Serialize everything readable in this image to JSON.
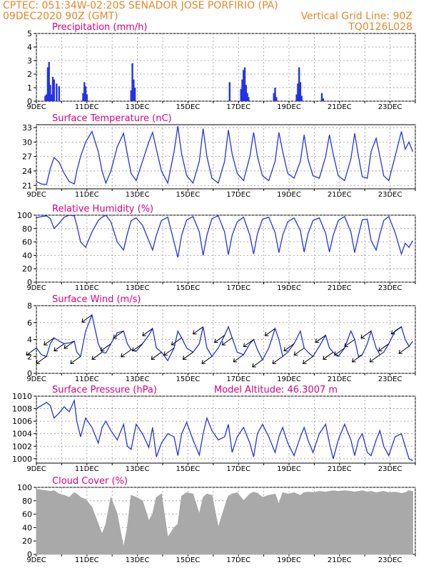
{
  "header": {
    "line1": "CPTEC:   051:34W-02:20S   SENADOR JOSE PORFIRIO (PA)",
    "line2_left": "09DEC2020 90Z (GMT)",
    "line2_right": "Vertical Grid Line: 90Z",
    "line3_right": "TQ0126L028"
  },
  "colors": {
    "header": "#e8862a",
    "title": "#e0007a",
    "series": "#2433e6",
    "cloud": "#a9a9a9",
    "wind_arrow": "#000000",
    "grid": "#9a9a9a"
  },
  "x_ticks": [
    "9DEC",
    "11DEC",
    "13DEC",
    "15DEC",
    "17DEC",
    "19DEC",
    "21DEC",
    "23DEC"
  ],
  "chart_data": [
    {
      "id": "precipitation",
      "type": "bar",
      "title": "Precipitation (mm/h)",
      "ylim": [
        0,
        5
      ],
      "yticks": [
        0,
        1,
        2,
        3,
        4,
        5
      ],
      "grid": true,
      "x": [
        0.35,
        0.4,
        0.45,
        0.5,
        0.55,
        0.6,
        0.65,
        0.7,
        0.8,
        0.9,
        1.85,
        1.9,
        1.95,
        2.0,
        3.75,
        3.8,
        3.85,
        3.9,
        7.65,
        8.1,
        8.15,
        8.2,
        8.25,
        8.3,
        8.35,
        8.4,
        9.4,
        9.45,
        9.5,
        10.3,
        10.35,
        10.4,
        10.45,
        10.5,
        11.3,
        11.35
      ],
      "values": [
        0.4,
        0.5,
        2.5,
        2.9,
        1.2,
        0.5,
        1.8,
        1.6,
        1.3,
        1.1,
        0.6,
        1.4,
        1.1,
        0.5,
        0.8,
        2.8,
        1.6,
        1.0,
        1.4,
        0.9,
        1.6,
        2.3,
        2.5,
        1.2,
        0.6,
        0.3,
        0.6,
        1.0,
        0.3,
        0.5,
        1.3,
        2.5,
        1.4,
        0.4,
        0.6,
        0.2
      ]
    },
    {
      "id": "temperature",
      "type": "line",
      "title": "Surface Temperature (nC)",
      "ylim": [
        20.3,
        33.6
      ],
      "yticks": [
        21,
        24,
        27,
        30,
        33
      ],
      "grid": true,
      "x": [
        0,
        0.2,
        0.4,
        0.55,
        0.7,
        0.9,
        1.1,
        1.3,
        1.5,
        1.6,
        1.75,
        1.95,
        2.2,
        2.45,
        2.6,
        2.75,
        2.95,
        3.2,
        3.45,
        3.6,
        3.75,
        3.95,
        4.2,
        4.45,
        4.6,
        4.75,
        4.95,
        5.2,
        5.45,
        5.6,
        5.75,
        5.95,
        6.2,
        6.45,
        6.6,
        6.75,
        6.95,
        7.2,
        7.45,
        7.6,
        7.75,
        7.95,
        8.2,
        8.45,
        8.6,
        8.75,
        8.95,
        9.2,
        9.45,
        9.6,
        9.75,
        9.95,
        10.2,
        10.45,
        10.6,
        10.75,
        10.95,
        11.2,
        11.45,
        11.6,
        11.75,
        11.95,
        12.2,
        12.45,
        12.6,
        12.75,
        12.9,
        13.1,
        13.25,
        13.45,
        13.6,
        13.75,
        13.95,
        14.2,
        14.45,
        14.6,
        14.75,
        14.9
      ],
      "values": [
        21.8,
        21.3,
        21.2,
        24.5,
        26.8,
        25.8,
        23.5,
        21.8,
        21.3,
        24.0,
        27.0,
        30.0,
        32.2,
        28.0,
        24.0,
        21.5,
        24.0,
        29.0,
        31.8,
        27.5,
        23.5,
        22.0,
        26.0,
        30.0,
        32.0,
        28.5,
        24.0,
        21.5,
        28.0,
        33.3,
        27.5,
        23.0,
        21.5,
        26.0,
        32.8,
        27.0,
        22.5,
        21.5,
        26.0,
        32.5,
        27.5,
        23.5,
        22.0,
        27.0,
        32.0,
        27.0,
        23.0,
        22.0,
        26.0,
        32.0,
        28.0,
        23.5,
        22.5,
        26.0,
        31.5,
        26.5,
        23.0,
        22.5,
        27.0,
        31.5,
        27.5,
        23.0,
        22.0,
        26.5,
        31.8,
        27.0,
        22.8,
        22.5,
        28.0,
        30.8,
        27.0,
        23.0,
        22.0,
        27.0,
        32.2,
        28.5,
        30.0,
        28.0
      ]
    },
    {
      "id": "humidity",
      "type": "line",
      "title": "Relative Humidity (%)",
      "ylim": [
        0,
        100
      ],
      "yticks": [
        0,
        20,
        40,
        60,
        80,
        100
      ],
      "grid": true,
      "x": [
        0,
        0.2,
        0.4,
        0.55,
        0.7,
        0.9,
        1.1,
        1.3,
        1.5,
        1.6,
        1.75,
        1.95,
        2.2,
        2.45,
        2.6,
        2.75,
        2.95,
        3.2,
        3.45,
        3.6,
        3.75,
        3.95,
        4.2,
        4.45,
        4.6,
        4.75,
        4.95,
        5.2,
        5.45,
        5.6,
        5.75,
        5.95,
        6.2,
        6.45,
        6.6,
        6.75,
        6.95,
        7.2,
        7.45,
        7.6,
        7.75,
        7.95,
        8.2,
        8.45,
        8.6,
        8.75,
        8.95,
        9.2,
        9.45,
        9.6,
        9.75,
        9.95,
        10.2,
        10.45,
        10.6,
        10.75,
        10.95,
        11.2,
        11.45,
        11.6,
        11.75,
        11.95,
        12.2,
        12.45,
        12.6,
        12.75,
        12.9,
        13.1,
        13.25,
        13.45,
        13.6,
        13.75,
        13.95,
        14.2,
        14.45,
        14.6,
        14.75,
        14.9
      ],
      "values": [
        96,
        98,
        99,
        95,
        80,
        88,
        97,
        100,
        99,
        85,
        60,
        52,
        75,
        92,
        97,
        100,
        90,
        60,
        48,
        72,
        92,
        96,
        85,
        62,
        48,
        70,
        92,
        97,
        60,
        37,
        70,
        93,
        98,
        75,
        40,
        70,
        95,
        99,
        75,
        41,
        70,
        90,
        97,
        70,
        42,
        72,
        94,
        97,
        74,
        44,
        70,
        90,
        96,
        77,
        45,
        72,
        92,
        96,
        73,
        45,
        70,
        92,
        98,
        75,
        44,
        70,
        93,
        94,
        62,
        48,
        72,
        92,
        98,
        74,
        42,
        58,
        52,
        62
      ]
    },
    {
      "id": "wind",
      "type": "line",
      "title": "Surface Wind (m/s)",
      "ylim": [
        0,
        8
      ],
      "yticks": [
        0,
        2,
        4,
        6,
        8
      ],
      "grid": true,
      "arrows": true,
      "x": [
        0,
        0.2,
        0.4,
        0.55,
        0.7,
        0.9,
        1.1,
        1.3,
        1.5,
        1.6,
        1.75,
        1.95,
        2.2,
        2.45,
        2.6,
        2.75,
        2.95,
        3.2,
        3.45,
        3.6,
        3.75,
        3.95,
        4.2,
        4.45,
        4.6,
        4.75,
        4.95,
        5.2,
        5.45,
        5.6,
        5.75,
        5.95,
        6.2,
        6.45,
        6.6,
        6.75,
        6.95,
        7.2,
        7.45,
        7.6,
        7.75,
        7.95,
        8.2,
        8.45,
        8.6,
        8.75,
        8.95,
        9.2,
        9.45,
        9.6,
        9.75,
        9.95,
        10.2,
        10.45,
        10.6,
        10.75,
        10.95,
        11.2,
        11.45,
        11.6,
        11.75,
        11.95,
        12.2,
        12.45,
        12.6,
        12.75,
        12.9,
        13.1,
        13.25,
        13.45,
        13.6,
        13.75,
        13.95,
        14.2,
        14.45,
        14.6,
        14.75,
        14.9
      ],
      "values": [
        3.0,
        2.2,
        2.0,
        3.5,
        4.2,
        3.8,
        3.5,
        3.6,
        3.8,
        2.5,
        2.0,
        5.0,
        6.9,
        3.5,
        2.5,
        2.4,
        3.5,
        4.8,
        5.0,
        3.5,
        2.8,
        2.6,
        3.5,
        4.5,
        5.3,
        3.0,
        2.5,
        1.5,
        3.0,
        5.0,
        4.2,
        3.0,
        2.5,
        3.5,
        5.5,
        3.0,
        2.0,
        3.0,
        4.5,
        5.5,
        4.2,
        2.5,
        2.2,
        3.5,
        4.0,
        2.8,
        1.6,
        3.0,
        5.3,
        4.0,
        2.0,
        2.5,
        3.5,
        5.0,
        3.0,
        2.5,
        2.0,
        3.2,
        4.5,
        3.0,
        2.5,
        2.0,
        3.0,
        5.0,
        4.0,
        2.0,
        2.2,
        3.5,
        5.0,
        3.0,
        2.2,
        2.5,
        3.5,
        5.0,
        5.5,
        4.0,
        3.2,
        3.8
      ]
    },
    {
      "id": "pressure",
      "type": "line",
      "title": "Surface Pressure (hPa)",
      "annotation": "Model Altitude: 46.3007 m",
      "ylim": [
        999.3,
        1010
      ],
      "yticks": [
        1000,
        1002,
        1004,
        1006,
        1008,
        1010
      ],
      "grid": true,
      "x": [
        0,
        0.2,
        0.4,
        0.55,
        0.7,
        0.9,
        1.1,
        1.3,
        1.5,
        1.6,
        1.75,
        1.95,
        2.2,
        2.45,
        2.6,
        2.75,
        2.95,
        3.2,
        3.45,
        3.6,
        3.75,
        3.95,
        4.2,
        4.45,
        4.6,
        4.75,
        4.95,
        5.2,
        5.45,
        5.6,
        5.75,
        5.95,
        6.2,
        6.45,
        6.6,
        6.75,
        6.95,
        7.2,
        7.45,
        7.6,
        7.75,
        7.95,
        8.2,
        8.45,
        8.6,
        8.75,
        8.95,
        9.2,
        9.45,
        9.6,
        9.75,
        9.95,
        10.2,
        10.45,
        10.6,
        10.75,
        10.95,
        11.2,
        11.45,
        11.6,
        11.75,
        11.95,
        12.2,
        12.45,
        12.6,
        12.75,
        12.9,
        13.1,
        13.25,
        13.45,
        13.6,
        13.75,
        13.95,
        14.2,
        14.45,
        14.6,
        14.75,
        14.9
      ],
      "values": [
        1008.0,
        1008.5,
        1009.0,
        1008.5,
        1006.5,
        1007.3,
        1008.3,
        1007.5,
        1009.3,
        1006.0,
        1003.5,
        1006.5,
        1005.0,
        1002.5,
        1005.0,
        1006.0,
        1004.5,
        1003.0,
        1005.5,
        1002.0,
        1001.5,
        1005.5,
        1004.0,
        1001.8,
        1005.0,
        1000.3,
        1002.5,
        1004.0,
        1003.5,
        1000.5,
        1004.0,
        1005.8,
        1003.0,
        1000.6,
        1004.0,
        1006.5,
        1004.5,
        1003.0,
        1003.5,
        1005.5,
        1001.0,
        1003.5,
        1005.0,
        1002.5,
        1000.3,
        1004.0,
        1005.5,
        1003.5,
        1001.0,
        1003.5,
        1005.0,
        1002.5,
        1000.5,
        1003.5,
        1005.0,
        1003.0,
        1001.0,
        1004.0,
        1005.5,
        1002.5,
        1000.0,
        1003.0,
        1005.5,
        1003.0,
        1000.5,
        1003.0,
        1004.0,
        1001.0,
        1000.5,
        1003.0,
        1004.5,
        1002.0,
        1000.5,
        1003.5,
        1004.0,
        1002.0,
        1000.0,
        999.7
      ]
    },
    {
      "id": "cloud",
      "type": "area",
      "title": "Cloud Cover (%)",
      "ylim": [
        0,
        100
      ],
      "yticks": [
        0,
        20,
        40,
        60,
        80,
        100
      ],
      "grid": true,
      "x": [
        0,
        0.2,
        0.4,
        0.55,
        0.7,
        0.9,
        1.1,
        1.3,
        1.5,
        1.6,
        1.75,
        1.95,
        2.2,
        2.45,
        2.6,
        2.75,
        2.95,
        3.2,
        3.45,
        3.6,
        3.75,
        3.95,
        4.2,
        4.45,
        4.6,
        4.75,
        4.95,
        5.2,
        5.45,
        5.6,
        5.75,
        5.95,
        6.2,
        6.45,
        6.6,
        6.75,
        6.95,
        7.2,
        7.45,
        7.6,
        7.75,
        7.95,
        8.2,
        8.45,
        8.6,
        8.75,
        8.95,
        9.2,
        9.45,
        9.6,
        9.75,
        9.95,
        10.2,
        10.45,
        10.6,
        10.75,
        10.95,
        11.2,
        11.45,
        11.6,
        11.75,
        11.95,
        12.2,
        12.45,
        12.6,
        12.75,
        12.9,
        13.1,
        13.25,
        13.45,
        13.6,
        13.75,
        13.95,
        14.2,
        14.45,
        14.6,
        14.75,
        14.9
      ],
      "values": [
        97,
        96,
        95,
        94,
        95,
        90,
        88,
        85,
        92,
        90,
        85,
        82,
        70,
        45,
        30,
        45,
        85,
        60,
        10,
        40,
        88,
        85,
        80,
        50,
        60,
        85,
        90,
        25,
        40,
        45,
        87,
        92,
        90,
        60,
        85,
        90,
        88,
        40,
        70,
        87,
        90,
        92,
        80,
        90,
        93,
        91,
        85,
        88,
        90,
        75,
        92,
        90,
        92,
        88,
        92,
        93,
        92,
        94,
        93,
        94,
        95,
        94,
        95,
        94,
        93,
        94,
        95,
        93,
        94,
        92,
        93,
        94,
        92,
        93,
        91,
        92,
        95,
        94
      ]
    }
  ]
}
